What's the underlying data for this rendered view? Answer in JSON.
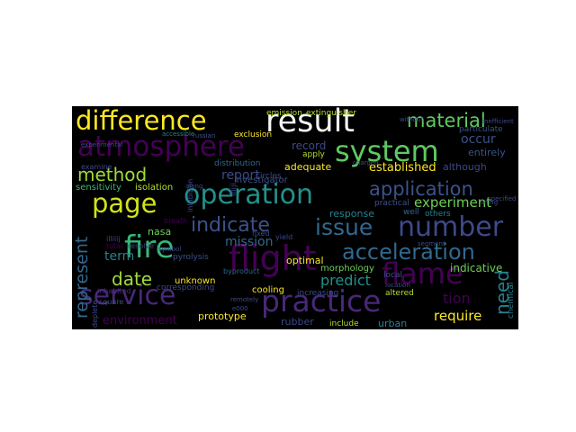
{
  "words": [
    {
      "text": "difference",
      "color": "#fde725"
    },
    {
      "text": "result",
      "color": "#f5f5f5"
    },
    {
      "text": "material",
      "color": "#5ec962"
    },
    {
      "text": "atmosphere",
      "color": "#440154"
    },
    {
      "text": "system",
      "color": "#5ec962"
    },
    {
      "text": "method",
      "color": "#a0da39"
    },
    {
      "text": "operation",
      "color": "#21918c"
    },
    {
      "text": "application",
      "color": "#3b528b"
    },
    {
      "text": "page",
      "color": "#d2e21b"
    },
    {
      "text": "indicate",
      "color": "#3b528b"
    },
    {
      "text": "issue",
      "color": "#31688e"
    },
    {
      "text": "number",
      "color": "#3e4989"
    },
    {
      "text": "fire",
      "color": "#35b779"
    },
    {
      "text": "flight",
      "color": "#440154"
    },
    {
      "text": "acceleration",
      "color": "#31688e"
    },
    {
      "text": "flame",
      "color": "#440154"
    },
    {
      "text": "service",
      "color": "#482878"
    },
    {
      "text": "practice",
      "color": "#482878"
    },
    {
      "text": "represent",
      "color": "#31688e"
    },
    {
      "text": "date",
      "color": "#a0da39"
    },
    {
      "text": "need",
      "color": "#26828e"
    },
    {
      "text": "experiment",
      "color": "#6ece58"
    },
    {
      "text": "report",
      "color": "#3e4989"
    },
    {
      "text": "occur",
      "color": "#3b528b"
    },
    {
      "text": "environment",
      "color": "#440154"
    },
    {
      "text": "prototype",
      "color": "#fde725"
    },
    {
      "text": "require",
      "color": "#fde725"
    },
    {
      "text": "mission",
      "color": "#31688e"
    },
    {
      "text": "predict",
      "color": "#21918c"
    },
    {
      "text": "indicative",
      "color": "#6ece58"
    },
    {
      "text": "tion",
      "color": "#440154"
    },
    {
      "text": "term",
      "color": "#26828e"
    },
    {
      "text": "established",
      "color": "#fde725"
    },
    {
      "text": "record",
      "color": "#3e4989"
    },
    {
      "text": "response",
      "color": "#26828e"
    },
    {
      "text": "investigator",
      "color": "#3b528b"
    },
    {
      "text": "adequate",
      "color": "#fde725"
    },
    {
      "text": "optimal",
      "color": "#fde725"
    },
    {
      "text": "unknown",
      "color": "#fde725"
    },
    {
      "text": "cooling",
      "color": "#fde725"
    },
    {
      "text": "rubber",
      "color": "#3e4989"
    },
    {
      "text": "urban",
      "color": "#26828e"
    },
    {
      "text": "nasa",
      "color": "#6ece58"
    },
    {
      "text": "morphology",
      "color": "#6ece58"
    },
    {
      "text": "sensitivity",
      "color": "#35b779"
    },
    {
      "text": "isolation",
      "color": "#b5de2b"
    },
    {
      "text": "distribution",
      "color": "#31688e"
    },
    {
      "text": "although",
      "color": "#3e4989"
    },
    {
      "text": "entirely",
      "color": "#3b528b"
    },
    {
      "text": "particulate",
      "color": "#3b528b"
    },
    {
      "text": "emission",
      "color": "#b5de2b"
    },
    {
      "text": "extinguisher",
      "color": "#b5de2b"
    },
    {
      "text": "exclusion",
      "color": "#fde725"
    },
    {
      "text": "pyrolysis",
      "color": "#3b528b"
    },
    {
      "text": "corresponding",
      "color": "#3e4989"
    },
    {
      "text": "increasing",
      "color": "#3e4989"
    },
    {
      "text": "altered",
      "color": "#b5de2b"
    },
    {
      "text": "include",
      "color": "#b5de2b"
    },
    {
      "text": "local",
      "color": "#3b528b"
    },
    {
      "text": "practical",
      "color": "#3b528b"
    },
    {
      "text": "well",
      "color": "#31688e"
    },
    {
      "text": "others",
      "color": "#26828e"
    },
    {
      "text": "chemical",
      "color": "#26828e"
    },
    {
      "text": "square",
      "color": "#3b528b"
    },
    {
      "text": "apply",
      "color": "#b5de2b"
    },
    {
      "text": "circles",
      "color": "#3e4989"
    },
    {
      "text": "yield",
      "color": "#3e4989"
    },
    {
      "text": "fixed",
      "color": "#3e4989"
    },
    {
      "text": "byproduct",
      "color": "#31688e"
    },
    {
      "text": "breath",
      "color": "#440154"
    },
    {
      "text": "inhibition",
      "color": "#3e4989"
    },
    {
      "text": "resolve",
      "color": "#3e4989"
    },
    {
      "text": "total",
      "color": "#440154"
    },
    {
      "text": "inhabited",
      "color": "#482878"
    },
    {
      "text": "examine",
      "color": "#3e4989"
    },
    {
      "text": "experimental",
      "color": "#3e4989"
    },
    {
      "text": "accessible",
      "color": "#26828e"
    },
    {
      "text": "russian",
      "color": "#3b528b"
    },
    {
      "text": "along",
      "color": "#3e4989"
    },
    {
      "text": "without",
      "color": "#3e4989"
    },
    {
      "text": "inefficient",
      "color": "#3e4989"
    },
    {
      "text": "location",
      "color": "#3e4989"
    },
    {
      "text": "charged",
      "color": "#3b528b"
    },
    {
      "text": "segment",
      "color": "#3e4989"
    },
    {
      "text": "specified",
      "color": "#3e4989"
    },
    {
      "text": "lining",
      "color": "#3e4989"
    },
    {
      "text": "remotely",
      "color": "#3e4989"
    },
    {
      "text": "deplete",
      "color": "#3e4989"
    },
    {
      "text": "e000",
      "color": "#3e4989"
    },
    {
      "text": "symbol",
      "color": "#3e4989"
    },
    {
      "text": "illiji",
      "color": "#3e4989"
    },
    {
      "text": "illilij",
      "color": "#3e4989"
    }
  ]
}
